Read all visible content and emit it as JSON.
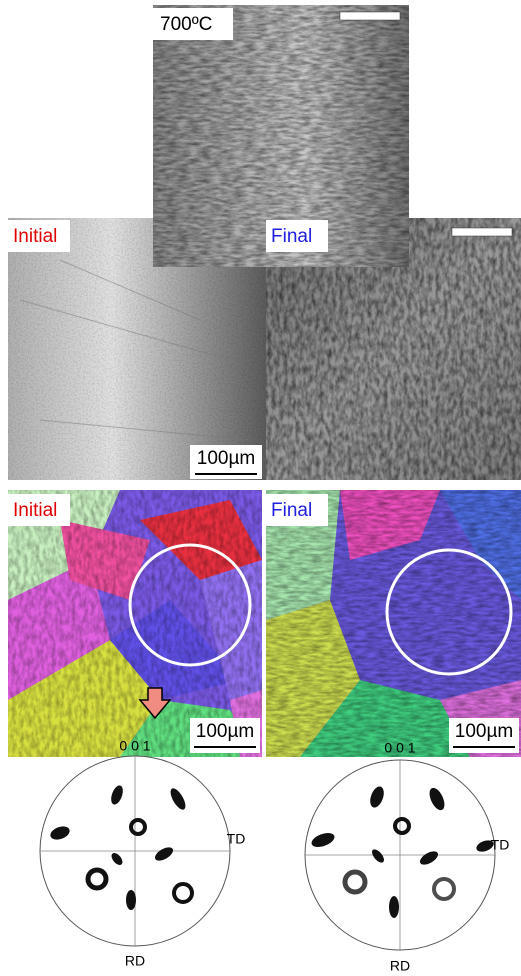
{
  "micrographs": {
    "top_label": "700ºC",
    "left_label": "Initial",
    "right_label": "Final",
    "scale_bar": "100µm"
  },
  "ebsd": {
    "left_label": "Initial",
    "right_label": "Final",
    "left_scale_bar": "100µm",
    "right_scale_bar": "100µm"
  },
  "pole_figures": [
    {
      "title": "0 0 1",
      "horizontal_axis": "TD",
      "vertical_axis": "RD"
    },
    {
      "title": "0 0 1",
      "horizontal_axis": "TD",
      "vertical_axis": "RD"
    }
  ]
}
